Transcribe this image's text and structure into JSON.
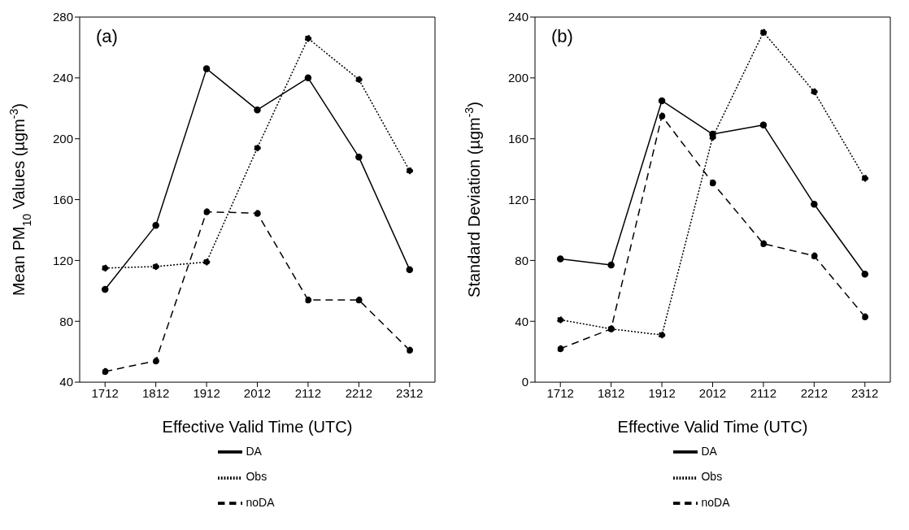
{
  "chart_data": [
    {
      "type": "line",
      "title": "(a)",
      "xlabel": "Effective Valid Time (UTC)",
      "ylabel": "Mean PM$_{10}$ Values (µgm$^{-3}$)",
      "categories": [
        "1712",
        "1812",
        "1912",
        "2012",
        "2112",
        "2212",
        "2312"
      ],
      "ylim": [
        40,
        280
      ],
      "yticks": [
        40,
        80,
        120,
        160,
        200,
        240,
        280
      ],
      "marker": "circle",
      "legend": "bottom",
      "grid": false,
      "series": [
        {
          "name": "DA",
          "color": "#000000",
          "line_style": "solid",
          "values": [
            101,
            143,
            246,
            219,
            240,
            188,
            114
          ]
        },
        {
          "name": "noDA",
          "color": "#000000",
          "line_style": "dashed",
          "values": [
            47,
            54,
            152,
            151,
            94,
            94,
            61
          ]
        },
        {
          "name": "Obs",
          "color": "#000000",
          "line_style": "dotted",
          "values": [
            115,
            116,
            119,
            194,
            266,
            239,
            179
          ]
        }
      ]
    },
    {
      "type": "line",
      "title": "(b)",
      "xlabel": "Effective Valid Time (UTC)",
      "ylabel": "Standard Deviation (µgm$^{-3}$)",
      "categories": [
        "1712",
        "1812",
        "1912",
        "2012",
        "2112",
        "2212",
        "2312"
      ],
      "ylim": [
        0,
        240
      ],
      "yticks": [
        0,
        40,
        80,
        120,
        160,
        200,
        240
      ],
      "marker": "circle",
      "legend": "bottom",
      "grid": false,
      "series": [
        {
          "name": "DA",
          "color": "#000000",
          "line_style": "solid",
          "values": [
            81,
            77,
            185,
            163,
            169,
            117,
            71
          ]
        },
        {
          "name": "noDA",
          "color": "#000000",
          "line_style": "dashed",
          "values": [
            22,
            35,
            175,
            131,
            91,
            83,
            43
          ]
        },
        {
          "name": "Obs",
          "color": "#000000",
          "line_style": "dotted",
          "values": [
            41,
            35,
            31,
            161,
            230,
            191,
            134
          ]
        }
      ]
    }
  ]
}
